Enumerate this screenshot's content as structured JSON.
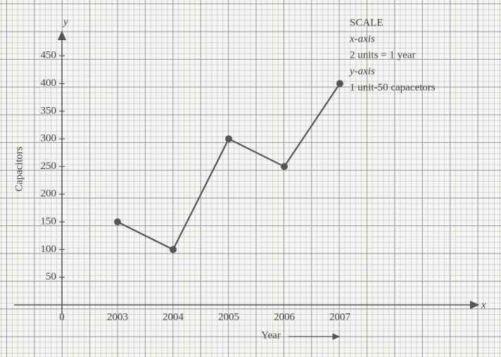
{
  "chart_data": {
    "type": "line",
    "y_axis_symbol": "y",
    "x_axis_symbol": "x",
    "y_label": "Capacitors",
    "x_label": "Year",
    "categories": [
      "0",
      "2003",
      "2004",
      "2005",
      "2006",
      "2007"
    ],
    "values": [
      null,
      150,
      100,
      300,
      250,
      400
    ],
    "color": "#555555",
    "ylim": [
      0,
      500
    ],
    "yticks": [
      50,
      100,
      150,
      200,
      250,
      300,
      350,
      400,
      450
    ],
    "scale_note": {
      "title": "SCALE",
      "x_heading": "x-axis",
      "x_text": "2 units = 1 year",
      "y_heading": "y-axis",
      "y_text": "1 unit-50 capacetors"
    }
  }
}
